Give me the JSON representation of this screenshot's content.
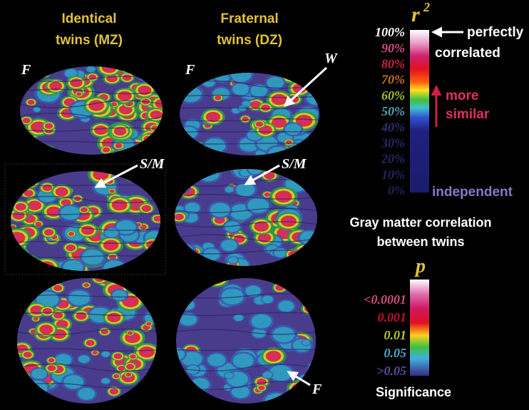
{
  "columns": [
    {
      "lines": [
        "Identical",
        "twins (MZ)"
      ]
    },
    {
      "lines": [
        "Fraternal",
        "twins (DZ)"
      ]
    }
  ],
  "brain_labels": [
    "F",
    "F",
    "W",
    "S/M",
    "S/M",
    "F"
  ],
  "correlation_scale": {
    "symbol": "r",
    "exponent": "2",
    "ticks": [
      "100%",
      "90%",
      "80%",
      "70%",
      "60%",
      "50%",
      "40%",
      "30%",
      "20%",
      "10%",
      "0%"
    ],
    "top_note": [
      "perfectly",
      "correlated"
    ],
    "arrow_note": [
      "more",
      "similar"
    ],
    "bottom_note": "independent",
    "caption": [
      "Gray matter correlation",
      "between twins"
    ]
  },
  "significance_scale": {
    "symbol": "p",
    "ticks": [
      "<0.0001",
      "0.001",
      "0.01",
      "0.05",
      ">0.05"
    ],
    "caption": "Significance"
  }
}
